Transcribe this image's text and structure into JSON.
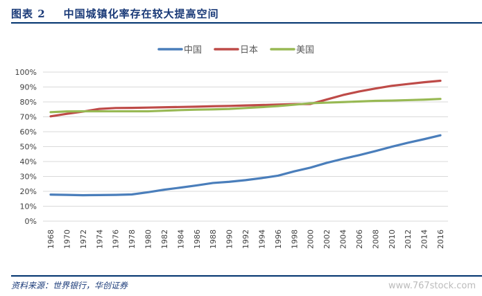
{
  "header": {
    "figure_label": "图表 2",
    "title": "中国城镇化率存在较大提高空间"
  },
  "footer": {
    "source": "资料来源：世界银行，华创证券",
    "watermark": "www.767stock.com"
  },
  "colors": {
    "中国": "#4a7ebb",
    "日本": "#be4b48",
    "美国": "#98b954",
    "rule": "#00336e",
    "grid": "#d9d9d9"
  },
  "chart_data": {
    "type": "line",
    "title": "",
    "xlabel": "",
    "ylabel": "",
    "ylim": [
      0,
      100
    ],
    "y_ticks": [
      "0%",
      "10%",
      "20%",
      "30%",
      "40%",
      "50%",
      "60%",
      "70%",
      "80%",
      "90%",
      "100%"
    ],
    "legend_position": "top-center",
    "grid": true,
    "x": [
      "1968",
      "1970",
      "1972",
      "1974",
      "1976",
      "1978",
      "1980",
      "1982",
      "1984",
      "1986",
      "1988",
      "1990",
      "1992",
      "1994",
      "1996",
      "1998",
      "2000",
      "2002",
      "2004",
      "2006",
      "2008",
      "2010",
      "2012",
      "2014",
      "2016"
    ],
    "series": [
      {
        "name": "中国",
        "values": [
          17.8,
          17.6,
          17.4,
          17.5,
          17.6,
          17.9,
          19.4,
          21.1,
          22.5,
          24.0,
          25.6,
          26.4,
          27.5,
          28.9,
          30.5,
          33.4,
          35.9,
          39.1,
          41.8,
          44.3,
          47.0,
          49.9,
          52.6,
          55.0,
          57.6
        ]
      },
      {
        "name": "日本",
        "values": [
          70.3,
          72.0,
          73.5,
          75.3,
          75.9,
          76.0,
          76.2,
          76.4,
          76.6,
          76.8,
          77.1,
          77.3,
          77.6,
          77.9,
          78.2,
          78.5,
          78.6,
          81.6,
          84.6,
          87.0,
          89.0,
          90.8,
          92.0,
          93.2,
          94.2
        ]
      },
      {
        "name": "美国",
        "values": [
          73.1,
          73.6,
          73.7,
          73.7,
          73.7,
          73.7,
          73.7,
          74.1,
          74.5,
          74.8,
          75.0,
          75.3,
          75.9,
          76.5,
          77.2,
          78.1,
          79.1,
          79.5,
          79.9,
          80.3,
          80.7,
          80.9,
          81.2,
          81.5,
          82.0
        ]
      }
    ]
  }
}
